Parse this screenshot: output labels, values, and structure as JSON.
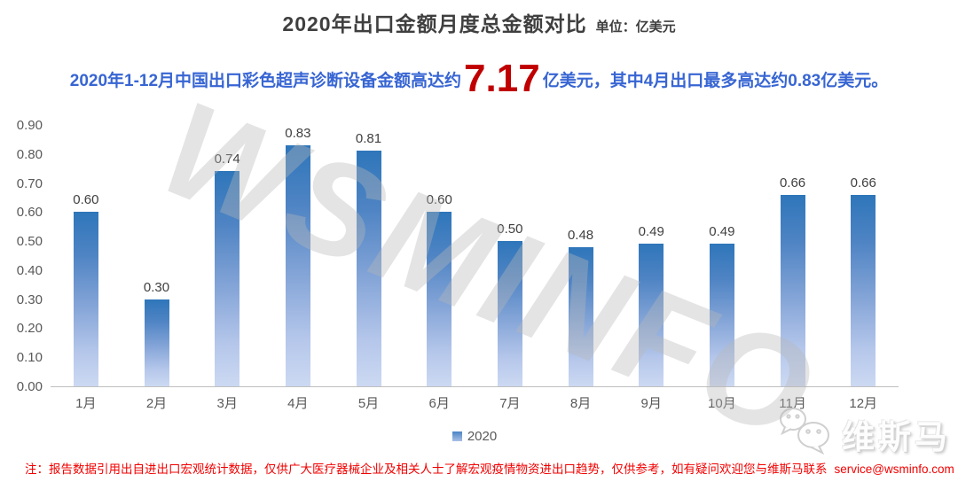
{
  "title": {
    "main": "2020年出口金额月度总金额对比",
    "unit": "单位：亿美元"
  },
  "subtitle": {
    "prefix": "2020年1-12月中国出口彩色超声诊断设备金额高达约",
    "highlight": "7.17",
    "suffix": "亿美元，其中4月出口最多高达约0.83亿美元。",
    "text_color": "#3765d3",
    "highlight_color": "#c00000"
  },
  "watermark": "WSMINFO",
  "chart_data": {
    "type": "bar",
    "title": "2020年出口金额月度总金额对比",
    "unit": "亿美元",
    "categories": [
      "1月",
      "2月",
      "3月",
      "4月",
      "5月",
      "6月",
      "7月",
      "8月",
      "9月",
      "10月",
      "11月",
      "12月"
    ],
    "series": [
      {
        "name": "2020",
        "values": [
          0.6,
          0.3,
          0.74,
          0.83,
          0.81,
          0.6,
          0.5,
          0.48,
          0.49,
          0.49,
          0.66,
          0.66
        ],
        "labels": [
          "0.60",
          "0.30",
          "0.74",
          "0.83",
          "0.81",
          "0.60",
          "0.50",
          "0.48",
          "0.49",
          "0.49",
          "0.66",
          "0.66"
        ]
      }
    ],
    "ylim": [
      0,
      0.9
    ],
    "y_ticks": [
      "0.90",
      "0.80",
      "0.70",
      "0.60",
      "0.50",
      "0.40",
      "0.30",
      "0.20",
      "0.10",
      "0.00"
    ],
    "grid": false,
    "legend_position": "bottom",
    "bar_color_top": "#2e76ba",
    "bar_color_bottom": "#ccd9f2"
  },
  "legend": {
    "label": "2020"
  },
  "footer": {
    "note": "注：报告数据引用出自进出口宏观统计数据，仅供广大医疗器械企业及相关人士了解宏观疫情物资进出口趋势，仅供参考，如有疑问欢迎您与维斯马联系",
    "email": "service@wsminfo.com"
  },
  "logo": {
    "text": "维斯马",
    "icon": "wechat-bubbles-icon"
  }
}
